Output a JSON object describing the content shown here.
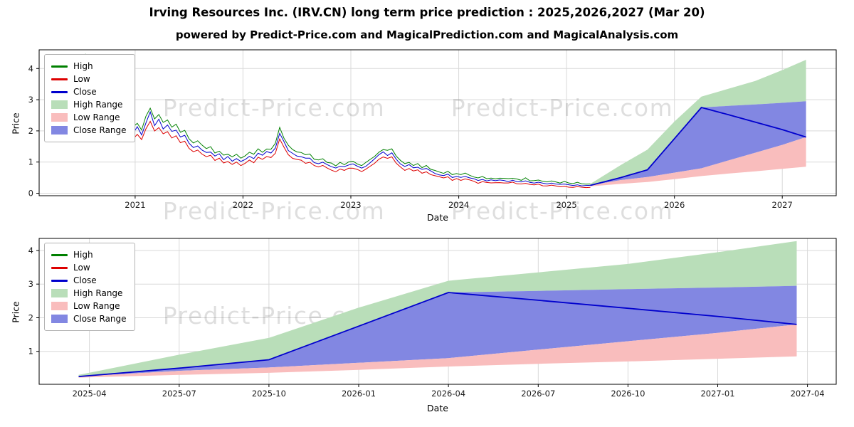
{
  "title": "Irving Resources Inc. (IRV.CN) long term price prediction : 2025,2026,2027 (Mar 20)",
  "subtitle": "powered by Predict-Price.com and MagicalPrediction.com and MagicalAnalysis.com",
  "watermark": "Predict-Price.com",
  "colors": {
    "high_line": "#008000",
    "low_line": "#dd0000",
    "close_line": "#0000cd",
    "high_range": "#b9deb9",
    "low_range": "#f9bdbd",
    "close_range": "#8287e2",
    "grid": "#d9d9d9",
    "axis": "#000000"
  },
  "legend": [
    {
      "label": "High",
      "color": "#008000",
      "kind": "line"
    },
    {
      "label": "Low",
      "color": "#dd0000",
      "kind": "line"
    },
    {
      "label": "Close",
      "color": "#0000cd",
      "kind": "line"
    },
    {
      "label": "High Range",
      "color": "#b9deb9",
      "kind": "patch"
    },
    {
      "label": "Low Range",
      "color": "#f9bdbd",
      "kind": "patch"
    },
    {
      "label": "Close Range",
      "color": "#8287e2",
      "kind": "patch"
    }
  ],
  "prediction": {
    "x": [
      2025.22,
      2025.5,
      2025.75,
      2026.0,
      2026.25,
      2026.5,
      2026.75,
      2027.0,
      2027.22
    ],
    "close": [
      0.25,
      0.5,
      0.75,
      1.75,
      2.75,
      2.52,
      2.28,
      2.04,
      1.8
    ],
    "close_range_top": [
      0.25,
      0.5,
      0.75,
      1.75,
      2.75,
      2.8,
      2.85,
      2.9,
      2.95
    ],
    "close_range_bottom": [
      0.25,
      0.42,
      0.52,
      0.66,
      0.8,
      1.05,
      1.3,
      1.55,
      1.8
    ],
    "low_range_bottom": [
      0.22,
      0.3,
      0.36,
      0.45,
      0.55,
      0.63,
      0.7,
      0.78,
      0.85
    ],
    "high_range_top": [
      0.3,
      0.9,
      1.4,
      2.3,
      3.1,
      3.35,
      3.6,
      3.95,
      4.28
    ]
  },
  "chart_data": [
    {
      "type": "line",
      "title": "historical prices with forecast ranges",
      "xlabel": "Date",
      "ylabel": "Price",
      "xlim": [
        2020.11,
        2027.5
      ],
      "ylim": [
        -0.08,
        4.6
      ],
      "xticks": [
        {
          "v": 2021,
          "label": "2021"
        },
        {
          "v": 2022,
          "label": "2022"
        },
        {
          "v": 2023,
          "label": "2023"
        },
        {
          "v": 2024,
          "label": "2024"
        },
        {
          "v": 2025,
          "label": "2025"
        },
        {
          "v": 2026,
          "label": "2026"
        },
        {
          "v": 2027,
          "label": "2027"
        }
      ],
      "yticks": [
        0,
        1,
        2,
        3,
        4
      ],
      "history": {
        "x_start": 2020.42,
        "x_step": 0.04,
        "high_factor": 1.05,
        "high_offset": 0.03,
        "low_factor": 0.92,
        "low_offset": -0.02,
        "close": [
          3.3,
          4.05,
          3.6,
          4.2,
          3.4,
          3.05,
          3.3,
          2.85,
          2.6,
          2.8,
          2.45,
          2.3,
          2.45,
          2.1,
          1.95,
          2.1,
          1.9,
          2.3,
          2.55,
          2.2,
          2.35,
          2.1,
          2.2,
          1.95,
          2.05,
          1.8,
          1.85,
          1.6,
          1.5,
          1.55,
          1.4,
          1.3,
          1.35,
          1.2,
          1.25,
          1.1,
          1.15,
          1.05,
          1.12,
          1.0,
          1.1,
          1.18,
          1.12,
          1.28,
          1.22,
          1.32,
          1.28,
          1.45,
          1.95,
          1.65,
          1.4,
          1.28,
          1.22,
          1.18,
          1.1,
          1.14,
          1.0,
          0.95,
          1.0,
          0.9,
          0.85,
          0.8,
          0.88,
          0.84,
          0.9,
          0.93,
          0.85,
          0.8,
          0.88,
          0.98,
          1.08,
          1.22,
          1.3,
          1.24,
          1.32,
          1.08,
          0.95,
          0.85,
          0.9,
          0.8,
          0.84,
          0.75,
          0.78,
          0.7,
          0.65,
          0.6,
          0.56,
          0.6,
          0.5,
          0.55,
          0.5,
          0.54,
          0.5,
          0.46,
          0.4,
          0.44,
          0.4,
          0.42,
          0.4,
          0.43,
          0.4,
          0.38,
          0.41,
          0.38,
          0.36,
          0.4,
          0.35,
          0.33,
          0.35,
          0.32,
          0.3,
          0.33,
          0.3,
          0.28,
          0.3,
          0.27,
          0.25,
          0.27,
          0.24,
          0.25,
          0.25
        ]
      }
    },
    {
      "type": "line",
      "title": "forecast detail 2025-2027",
      "xlabel": "Date",
      "ylabel": "Price",
      "xlim": [
        2025.11,
        2027.33
      ],
      "ylim": [
        0.02,
        4.36
      ],
      "xticks": [
        {
          "v": 2025.25,
          "label": "2025-04"
        },
        {
          "v": 2025.5,
          "label": "2025-07"
        },
        {
          "v": 2025.75,
          "label": "2025-10"
        },
        {
          "v": 2026.0,
          "label": "2026-01"
        },
        {
          "v": 2026.25,
          "label": "2026-04"
        },
        {
          "v": 2026.5,
          "label": "2026-07"
        },
        {
          "v": 2026.75,
          "label": "2026-10"
        },
        {
          "v": 2027.0,
          "label": "2027-01"
        },
        {
          "v": 2027.25,
          "label": "2027-04"
        }
      ],
      "yticks": [
        1,
        2,
        3,
        4
      ]
    }
  ]
}
